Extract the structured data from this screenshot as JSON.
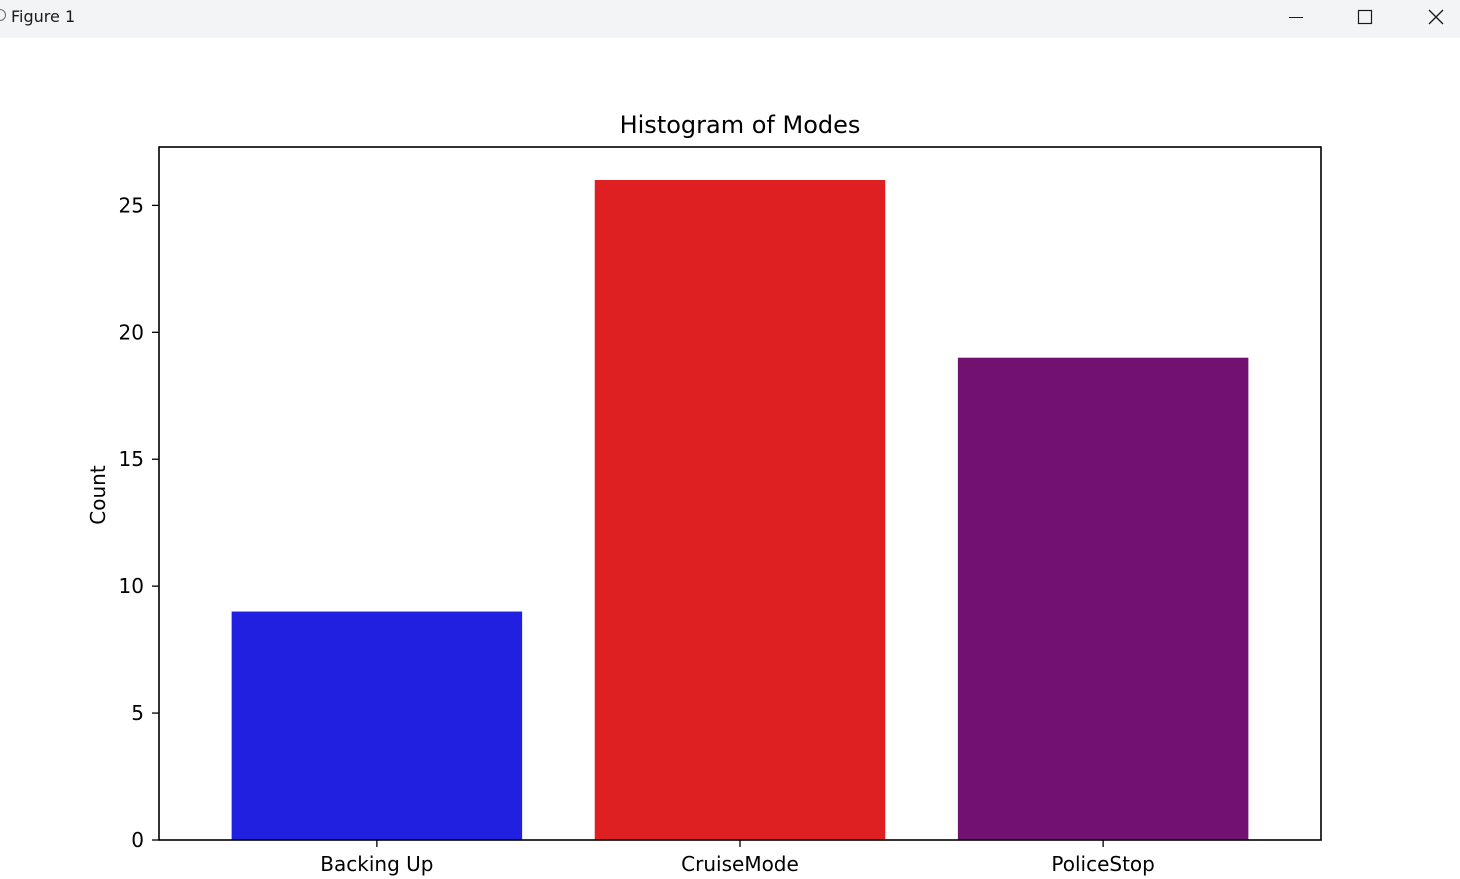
{
  "window": {
    "title": "Figure 1",
    "icons": [
      "app-icon",
      "minimize-icon",
      "maximize-icon",
      "close-icon"
    ]
  },
  "chart_data": {
    "type": "bar",
    "title": "Histogram of Modes",
    "xlabel": "",
    "ylabel": "Count",
    "categories": [
      "Backing Up",
      "CruiseMode",
      "PoliceStop"
    ],
    "values": [
      9,
      26,
      19
    ],
    "colors": [
      "#2220e0",
      "#df2022",
      "#72116f"
    ],
    "ylim": [
      0,
      27.3
    ],
    "yticks": [
      0,
      5,
      10,
      15,
      20,
      25
    ],
    "grid": false,
    "legend": false
  }
}
